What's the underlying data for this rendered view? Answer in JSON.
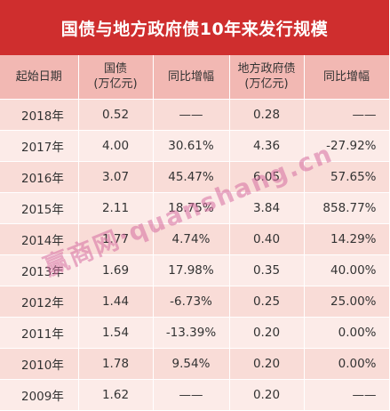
{
  "title": "国债与地方政府债10年来发行规模",
  "headers": {
    "start_date": "起始日期",
    "gov_bond_line1": "国债",
    "gov_bond_line2": "(万亿元)",
    "gov_yoy": "同比增幅",
    "local_bond_line1": "地方政府债",
    "local_bond_line2": "(万亿元)",
    "local_yoy": "同比增幅"
  },
  "rows": [
    {
      "year": "2018年",
      "gov": "0.52",
      "gov_yoy": "——",
      "local": "0.28",
      "local_yoy": "——"
    },
    {
      "year": "2017年",
      "gov": "4.00",
      "gov_yoy": "30.61%",
      "local": "4.36",
      "local_yoy": "-27.92%"
    },
    {
      "year": "2016年",
      "gov": "3.07",
      "gov_yoy": "45.47%",
      "local": "6.05",
      "local_yoy": "57.65%"
    },
    {
      "year": "2015年",
      "gov": "2.11",
      "gov_yoy": "18.75%",
      "local": "3.84",
      "local_yoy": "858.77%"
    },
    {
      "year": "2014年",
      "gov": "1.77",
      "gov_yoy": "4.74%",
      "local": "0.40",
      "local_yoy": "14.29%"
    },
    {
      "year": "2013年",
      "gov": "1.69",
      "gov_yoy": "17.98%",
      "local": "0.35",
      "local_yoy": "40.00%"
    },
    {
      "year": "2012年",
      "gov": "1.44",
      "gov_yoy": "-6.73%",
      "local": "0.25",
      "local_yoy": "25.00%"
    },
    {
      "year": "2011年",
      "gov": "1.54",
      "gov_yoy": "-13.39%",
      "local": "0.20",
      "local_yoy": "0.00%"
    },
    {
      "year": "2010年",
      "gov": "1.78",
      "gov_yoy": "9.54%",
      "local": "0.20",
      "local_yoy": "0.00%"
    },
    {
      "year": "2009年",
      "gov": "1.62",
      "gov_yoy": "——",
      "local": "0.20",
      "local_yoy": "——"
    }
  ],
  "watermark": "赢商网·quanshang.cn",
  "colors": {
    "title_bg": "#cf2e2e",
    "header_bg": "#f2b8b3",
    "row_odd": "#f9dcd7",
    "row_even": "#fcebe8"
  }
}
